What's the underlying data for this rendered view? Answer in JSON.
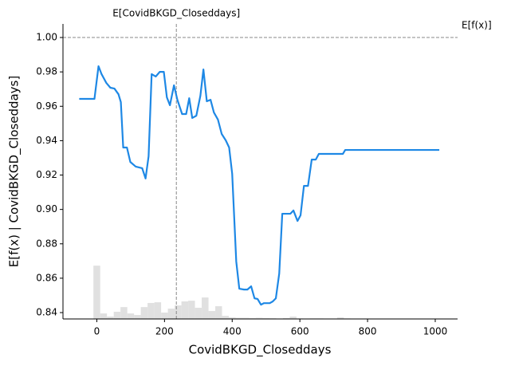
{
  "chart_data": {
    "type": "line",
    "xlabel": "CovidBKGD_Closeddays",
    "ylabel": "E[f(x) | CovidBKGD_Closeddays]",
    "x_expected_label": "E[CovidBKGD_Closeddays]",
    "x_expected": 235,
    "y_expected_label": "E[f(x)]",
    "y_expected": 1.0,
    "xlim": [
      -100,
      1066
    ],
    "ylim": [
      0.8363,
      1.0079
    ],
    "xticks": [
      0,
      200,
      400,
      600,
      800,
      1000
    ],
    "yticks": [
      0.84,
      0.86,
      0.88,
      {
        "value": 0.9,
        "label": "0.90"
      },
      0.92,
      0.94,
      0.96,
      0.98,
      {
        "value": 1.0,
        "label": "1.00"
      }
    ],
    "series": [
      {
        "color": "#1e88e5",
        "x": [
          -52,
          -7,
          5,
          14,
          28,
          40,
          52,
          64,
          71,
          78,
          89,
          99,
          115,
          134,
          144,
          153,
          162,
          174,
          186,
          198,
          207,
          216,
          228,
          238,
          252,
          264,
          273,
          282,
          294,
          306,
          315,
          325,
          336,
          346,
          358,
          369,
          381,
          391,
          400,
          412,
          421,
          435,
          445,
          456,
          466,
          475,
          485,
          494,
          511,
          520,
          529,
          539,
          548,
          560,
          572,
          581,
          593,
          602,
          612,
          624,
          635,
          647,
          656,
          727,
          734,
          1012
        ],
        "values": [
          0.9643,
          0.9643,
          0.9833,
          0.9787,
          0.9736,
          0.9708,
          0.9703,
          0.967,
          0.9624,
          0.936,
          0.936,
          0.9276,
          0.9249,
          0.924,
          0.918,
          0.9309,
          0.9787,
          0.9773,
          0.98,
          0.98,
          0.9652,
          0.9606,
          0.9722,
          0.9638,
          0.9555,
          0.9555,
          0.9647,
          0.9532,
          0.9545,
          0.9661,
          0.9814,
          0.9629,
          0.9638,
          0.9564,
          0.9522,
          0.9439,
          0.9402,
          0.936,
          0.9207,
          0.8697,
          0.8539,
          0.8534,
          0.8534,
          0.8553,
          0.8483,
          0.8479,
          0.8446,
          0.8455,
          0.8455,
          0.8465,
          0.8483,
          0.8627,
          0.8975,
          0.8975,
          0.8975,
          0.8994,
          0.8933,
          0.8966,
          0.9137,
          0.9137,
          0.929,
          0.929,
          0.9323,
          0.9323,
          0.9346,
          0.9346
        ]
      }
    ],
    "histogram": {
      "color": "#e0e0e0",
      "bins": [
        -10,
        10,
        30,
        50,
        70,
        90,
        110,
        130,
        150,
        170,
        190,
        210,
        230,
        250,
        270,
        290,
        310,
        330,
        350,
        370,
        390,
        410,
        430,
        450,
        470,
        490,
        510,
        530,
        550,
        570,
        590,
        610,
        630,
        650,
        670,
        690,
        710,
        730,
        750
      ],
      "values": [
        0.8673,
        0.8395,
        0.8377,
        0.8405,
        0.8432,
        0.8395,
        0.8386,
        0.8432,
        0.8456,
        0.846,
        0.84,
        0.8423,
        0.8442,
        0.8465,
        0.8469,
        0.8428,
        0.8488,
        0.8409,
        0.8437,
        0.8381,
        0.8372,
        0.837,
        0.837,
        0.8368,
        0.837,
        0.8368,
        0.8367,
        0.8365,
        0.8368,
        0.8377,
        0.8366,
        0.8365,
        0.8366,
        0.8366,
        0.8365,
        0.8365,
        0.8372,
        0.8366
      ]
    }
  }
}
